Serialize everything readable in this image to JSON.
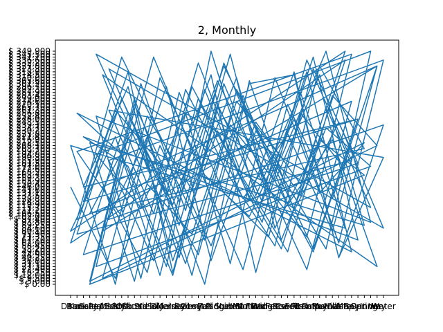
{
  "chart_data": {
    "type": "line",
    "title": "2, Monthly",
    "xlabel": "",
    "ylabel": "",
    "line_color": "#1f77b4",
    "grid": false,
    "legend": "none",
    "x_tick_labels": [
      "Dam",
      "Bank",
      "Kansas",
      "Sales",
      "Rep",
      "Jobs",
      "Miss",
      "Eddy",
      "Rock",
      "Office",
      "Sound",
      "Ste",
      "Yield",
      "Sol",
      "Side",
      "Main",
      "Jersey",
      "Ideal",
      "Sales",
      "Comp",
      "Loyal",
      "Pod",
      "Assoc",
      "Ridge",
      "Stub",
      "Lines",
      "Intl",
      "Mont",
      "Motion",
      "Fund",
      "Wide",
      "Rangers",
      "Fees",
      "Bow",
      "Credit",
      "Fees",
      "Rock",
      "Tramp",
      "Rams",
      "Bay",
      "Mutual",
      "Hills",
      "Waste",
      "Map",
      "Bay",
      "Oat",
      "Spring",
      "Inner",
      "Way",
      "Water"
    ],
    "y_tick_labels": [
      "$ 0.00",
      "$ 5,000",
      "$ 9,500",
      "$ 12,000",
      "$ 18,750",
      "$ 22,400",
      "$ 27,300",
      "$ 31,100",
      "$ 36,800",
      "$ 40,250",
      "$ 44,900",
      "$ 49,600",
      "$ 53,200",
      "$ 58,450",
      "$ 62,000",
      "$ 67,700",
      "$ 71,350",
      "$ 75,900",
      "$ 80,100",
      "$ 84,600",
      "$ 89,250",
      "$ 93,800",
      "$ 97,400",
      "$ 102,000",
      "$ 106,500",
      "$ 111,200",
      "$ 115,700",
      "$ 119,900",
      "$ 124,300",
      "$ 128,800",
      "$ 133,500",
      "$ 137,100",
      "$ 141,600",
      "$ 146,000",
      "$ 150,400",
      "$ 155,900",
      "$ 159,300",
      "$ 163,700",
      "$ 168,200",
      "$ 172,600",
      "$ 177,000",
      "$ 181,500",
      "$ 185,900",
      "$ 190,300",
      "$ 194,800",
      "$ 199,200",
      "$ 203,700",
      "$ 208,100",
      "$ 212,500",
      "$ 216,900",
      "$ 221,400",
      "$ 225,800",
      "$ 230,200",
      "$ 234,700",
      "$ 239,100",
      "$ 243,500",
      "$ 248,000",
      "$ 252,400",
      "$ 256,800",
      "$ 261,300",
      "$ 265,700",
      "$ 270,100",
      "$ 274,600",
      "$ 279,000",
      "$ 283,400",
      "$ 287,900",
      "$ 292,300",
      "$ 296,700",
      "$ 301,200",
      "$ 305,600",
      "$ 310,000",
      "$ 314,500",
      "$ 318,900",
      "$ 323,300",
      "$ 327,800",
      "$ 332,200",
      "$ 336,600",
      "$ 341,100",
      "$ 345,500",
      "$ 349,900"
    ],
    "series": [
      {
        "values": [
          33,
          2,
          47,
          15,
          68,
          71,
          9,
          54,
          22,
          77,
          40,
          5,
          61,
          29,
          74,
          18,
          50,
          3,
          66,
          37,
          12,
          79,
          44,
          26,
          58,
          7,
          70,
          31,
          48,
          1,
          63,
          20,
          75,
          39,
          11,
          56,
          28,
          72,
          4,
          60,
          35,
          16,
          78,
          45,
          23,
          67,
          8,
          52,
          30,
          76,
          14,
          59,
          41,
          0,
          69,
          25,
          55,
          19,
          73,
          38,
          10,
          64,
          27,
          49,
          6,
          71,
          34,
          17,
          62,
          43,
          79,
          21,
          57,
          2,
          66,
          36,
          13,
          74,
          46,
          24,
          53,
          9,
          68,
          32,
          77,
          15,
          50,
          40,
          3,
          61,
          28,
          72,
          11,
          58,
          44,
          6,
          79,
          30,
          65,
          19,
          47,
          0,
          70,
          37,
          23,
          56,
          14,
          76,
          42,
          8,
          63,
          29,
          51,
          18,
          74,
          33,
          4,
          67,
          39,
          12,
          60,
          26,
          78,
          45,
          7,
          54,
          35,
          71,
          20,
          48,
          1,
          65,
          31,
          16,
          73,
          41,
          10,
          58,
          27,
          69,
          38,
          5,
          62,
          22,
          77,
          46,
          13,
          55,
          34,
          79,
          18,
          50,
          3,
          66,
          29,
          72,
          9,
          43,
          59,
          24,
          75,
          36,
          11,
          64,
          47,
          2,
          57,
          32,
          70,
          15,
          53,
          40,
          6,
          68,
          25,
          78,
          19,
          49,
          37,
          0,
          61,
          28,
          74,
          44,
          12,
          56,
          33,
          67,
          8,
          52,
          21,
          76,
          42,
          17,
          63,
          30,
          71,
          4,
          58,
          39
        ]
      }
    ],
    "ylim": [
      0,
      79
    ]
  }
}
